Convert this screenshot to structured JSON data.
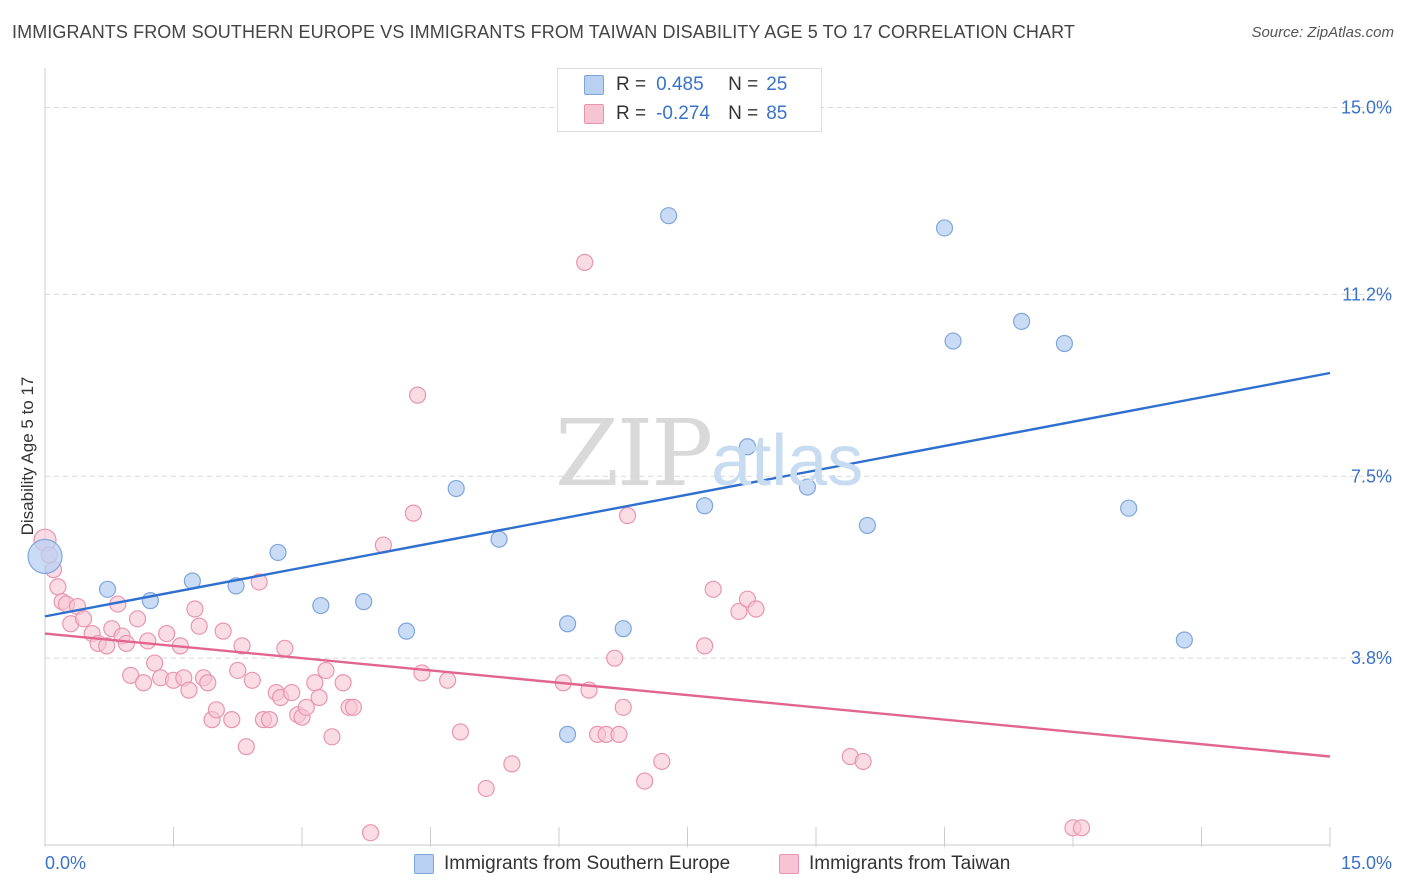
{
  "title": "IMMIGRANTS FROM SOUTHERN EUROPE VS IMMIGRANTS FROM TAIWAN DISABILITY AGE 5 TO 17 CORRELATION CHART",
  "source": "Source: ZipAtlas.com",
  "watermark": {
    "zip": "ZIP",
    "atlas": "atlas"
  },
  "legend": {
    "rows": [
      {
        "r_label": "R =",
        "r_value": "0.485",
        "n_label": "N =",
        "n_value": "25"
      },
      {
        "r_label": "R =",
        "r_value": "-0.274",
        "n_label": "N =",
        "n_value": "85"
      }
    ]
  },
  "colors": {
    "blue_fill": "#b8d0f2",
    "blue_stroke": "#7fa6dc",
    "blue_line": "#2f6fd0",
    "pink_fill": "#f7c4d4",
    "pink_stroke": "#e995b0",
    "pink_line": "#e2658f",
    "tick_label": "#3a72c8",
    "grid": "#d7d7d7"
  },
  "chart_data": {
    "type": "scatter",
    "title": "IMMIGRANTS FROM SOUTHERN EUROPE VS IMMIGRANTS FROM TAIWAN DISABILITY AGE 5 TO 17 CORRELATION CHART",
    "xlabel": "",
    "ylabel": "Disability Age 5 to 17",
    "xlim": [
      0,
      15
    ],
    "ylim": [
      0,
      15.6
    ],
    "x_tick_labels": [
      "0.0%",
      "15.0%"
    ],
    "y_ticks": [
      3.8,
      7.5,
      11.2,
      15.0
    ],
    "y_tick_labels": [
      "3.8%",
      "7.5%",
      "11.2%",
      "15.0%"
    ],
    "grid": "horizontal dashed",
    "legend_position": "bottom",
    "series": [
      {
        "name": "Immigrants from Southern Europe",
        "r": 0.485,
        "n": 25,
        "trend": [
          [
            0,
            4.65
          ],
          [
            15,
            9.6
          ]
        ],
        "points": [
          [
            0.0,
            5.87
          ],
          [
            0.73,
            5.2
          ],
          [
            1.23,
            4.97
          ],
          [
            1.72,
            5.37
          ],
          [
            2.23,
            5.27
          ],
          [
            2.72,
            5.95
          ],
          [
            3.22,
            4.87
          ],
          [
            3.72,
            4.95
          ],
          [
            4.22,
            4.35
          ],
          [
            4.8,
            7.25
          ],
          [
            5.3,
            6.22
          ],
          [
            6.1,
            2.25
          ],
          [
            6.1,
            4.5
          ],
          [
            6.75,
            4.4
          ],
          [
            7.28,
            12.8
          ],
          [
            7.7,
            6.9
          ],
          [
            8.2,
            8.1
          ],
          [
            8.9,
            7.28
          ],
          [
            9.6,
            6.5
          ],
          [
            10.5,
            12.55
          ],
          [
            10.6,
            10.25
          ],
          [
            11.4,
            10.65
          ],
          [
            11.9,
            10.2
          ],
          [
            12.65,
            6.85
          ],
          [
            13.3,
            4.17
          ]
        ]
      },
      {
        "name": "Immigrants from Taiwan",
        "r": -0.274,
        "n": 85,
        "trend": [
          [
            0,
            4.3
          ],
          [
            15,
            1.8
          ]
        ],
        "points": [
          [
            0.0,
            6.2
          ],
          [
            0.1,
            5.6
          ],
          [
            0.15,
            5.25
          ],
          [
            0.2,
            4.95
          ],
          [
            0.25,
            4.9
          ],
          [
            0.3,
            4.5
          ],
          [
            0.38,
            4.85
          ],
          [
            0.45,
            4.6
          ],
          [
            0.55,
            4.3
          ],
          [
            0.62,
            4.1
          ],
          [
            0.72,
            4.05
          ],
          [
            0.78,
            4.4
          ],
          [
            0.85,
            4.9
          ],
          [
            0.9,
            4.25
          ],
          [
            0.95,
            4.1
          ],
          [
            1.0,
            3.45
          ],
          [
            1.08,
            4.6
          ],
          [
            1.15,
            3.3
          ],
          [
            1.2,
            4.15
          ],
          [
            1.28,
            3.7
          ],
          [
            1.35,
            3.4
          ],
          [
            1.42,
            4.3
          ],
          [
            1.5,
            3.35
          ],
          [
            1.58,
            4.05
          ],
          [
            1.62,
            3.4
          ],
          [
            1.68,
            3.15
          ],
          [
            1.75,
            4.8
          ],
          [
            1.8,
            4.45
          ],
          [
            1.85,
            3.4
          ],
          [
            1.9,
            3.3
          ],
          [
            1.95,
            2.55
          ],
          [
            2.0,
            2.75
          ],
          [
            2.08,
            4.35
          ],
          [
            2.18,
            2.55
          ],
          [
            2.25,
            3.55
          ],
          [
            2.3,
            4.05
          ],
          [
            2.35,
            2.0
          ],
          [
            2.42,
            3.35
          ],
          [
            2.5,
            5.35
          ],
          [
            2.55,
            2.55
          ],
          [
            2.62,
            2.55
          ],
          [
            2.7,
            3.1
          ],
          [
            2.75,
            3.0
          ],
          [
            2.8,
            4.0
          ],
          [
            2.88,
            3.1
          ],
          [
            2.95,
            2.65
          ],
          [
            3.0,
            2.6
          ],
          [
            3.05,
            2.8
          ],
          [
            3.15,
            3.3
          ],
          [
            3.2,
            3.0
          ],
          [
            3.28,
            3.55
          ],
          [
            3.35,
            2.2
          ],
          [
            3.48,
            3.3
          ],
          [
            3.55,
            2.8
          ],
          [
            3.6,
            2.8
          ],
          [
            3.8,
            0.25
          ],
          [
            3.95,
            6.1
          ],
          [
            4.3,
            6.75
          ],
          [
            4.35,
            9.15
          ],
          [
            4.4,
            3.5
          ],
          [
            4.7,
            3.35
          ],
          [
            4.85,
            2.3
          ],
          [
            5.15,
            1.15
          ],
          [
            5.45,
            1.65
          ],
          [
            6.05,
            3.3
          ],
          [
            6.3,
            11.85
          ],
          [
            6.35,
            3.15
          ],
          [
            6.45,
            2.25
          ],
          [
            6.55,
            2.25
          ],
          [
            6.65,
            3.8
          ],
          [
            6.7,
            2.25
          ],
          [
            6.75,
            2.8
          ],
          [
            6.8,
            6.7
          ],
          [
            7.0,
            1.3
          ],
          [
            7.2,
            1.7
          ],
          [
            7.7,
            4.05
          ],
          [
            7.8,
            5.2
          ],
          [
            8.1,
            4.75
          ],
          [
            8.2,
            5.0
          ],
          [
            8.3,
            4.8
          ],
          [
            9.4,
            1.8
          ],
          [
            9.55,
            1.7
          ],
          [
            12.0,
            0.35
          ],
          [
            12.1,
            0.35
          ],
          [
            0.05,
            5.9
          ]
        ]
      }
    ]
  },
  "bottom_legend": [
    {
      "label": "Immigrants from Southern Europe"
    },
    {
      "label": "Immigrants from Taiwan"
    }
  ]
}
